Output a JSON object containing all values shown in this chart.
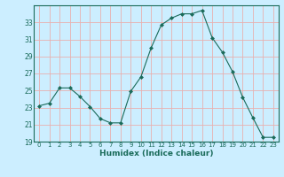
{
  "x": [
    0,
    1,
    2,
    3,
    4,
    5,
    6,
    7,
    8,
    9,
    10,
    11,
    12,
    13,
    14,
    15,
    16,
    17,
    18,
    19,
    20,
    21,
    22,
    23
  ],
  "y": [
    23.2,
    23.5,
    25.3,
    25.3,
    24.3,
    23.1,
    21.7,
    21.2,
    21.2,
    24.9,
    26.6,
    30.0,
    32.7,
    33.5,
    34.0,
    34.0,
    34.4,
    31.2,
    29.5,
    27.2,
    24.2,
    21.8,
    19.5,
    19.5
  ],
  "xlabel": "Humidex (Indice chaleur)",
  "ylim": [
    19,
    35
  ],
  "xlim": [
    -0.5,
    23.5
  ],
  "yticks": [
    19,
    21,
    23,
    25,
    27,
    29,
    31,
    33
  ],
  "xticks": [
    0,
    1,
    2,
    3,
    4,
    5,
    6,
    7,
    8,
    9,
    10,
    11,
    12,
    13,
    14,
    15,
    16,
    17,
    18,
    19,
    20,
    21,
    22,
    23
  ],
  "line_color": "#1a6b5a",
  "marker": "D",
  "marker_size": 2,
  "bg_color": "#cceeff",
  "grid_color": "#e8b0b0",
  "xlabel_color": "#1a6b5a",
  "tick_color": "#1a6b5a",
  "spine_color": "#1a6b5a"
}
